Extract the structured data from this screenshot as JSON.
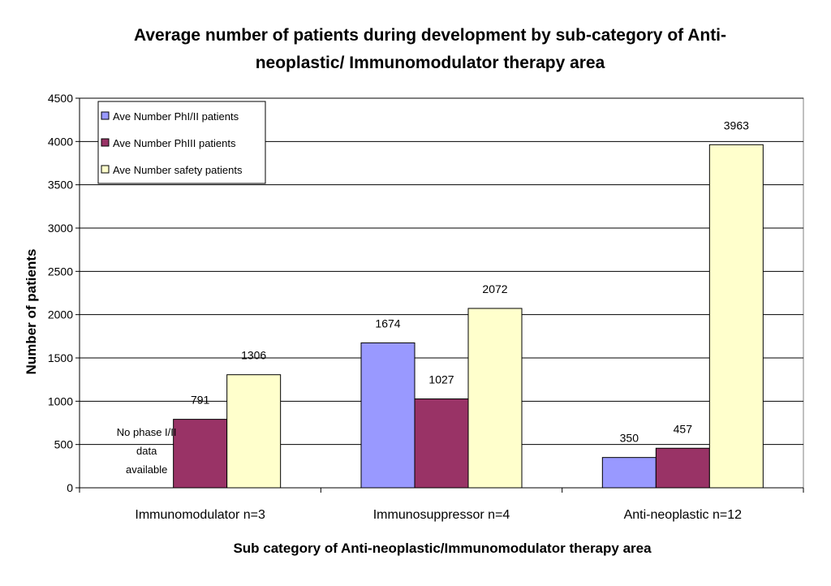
{
  "chart_data": {
    "type": "bar",
    "title_lines": [
      "Average number of patients during development by sub-category of Anti-",
      "neoplastic/ Immunomodulator therapy area"
    ],
    "xlabel": "Sub category of Anti-neoplastic/Immunomodulator therapy area",
    "ylabel": "Number of patients",
    "ylim": [
      0,
      4500
    ],
    "yticks": [
      0,
      500,
      1000,
      1500,
      2000,
      2500,
      3000,
      3500,
      4000,
      4500
    ],
    "grid": true,
    "legend_position": "top-left",
    "categories": [
      "Immunomodulator n=3",
      "Immunosuppressor n=4",
      "Anti-neoplastic n=12"
    ],
    "series": [
      {
        "name": "Ave Number PhI/II patients",
        "color": "#9999ff",
        "values": [
          null,
          1674,
          350
        ]
      },
      {
        "name": "Ave Number PhIII patients",
        "color": "#993366",
        "values": [
          791,
          1027,
          457
        ]
      },
      {
        "name": "Ave Number safety patients",
        "color": "#ffffcc",
        "values": [
          1306,
          2072,
          3963
        ]
      }
    ],
    "annotations": [
      {
        "category_index": 0,
        "series_index": 0,
        "lines": [
          "No phase I/II",
          "data",
          "available"
        ]
      }
    ]
  }
}
